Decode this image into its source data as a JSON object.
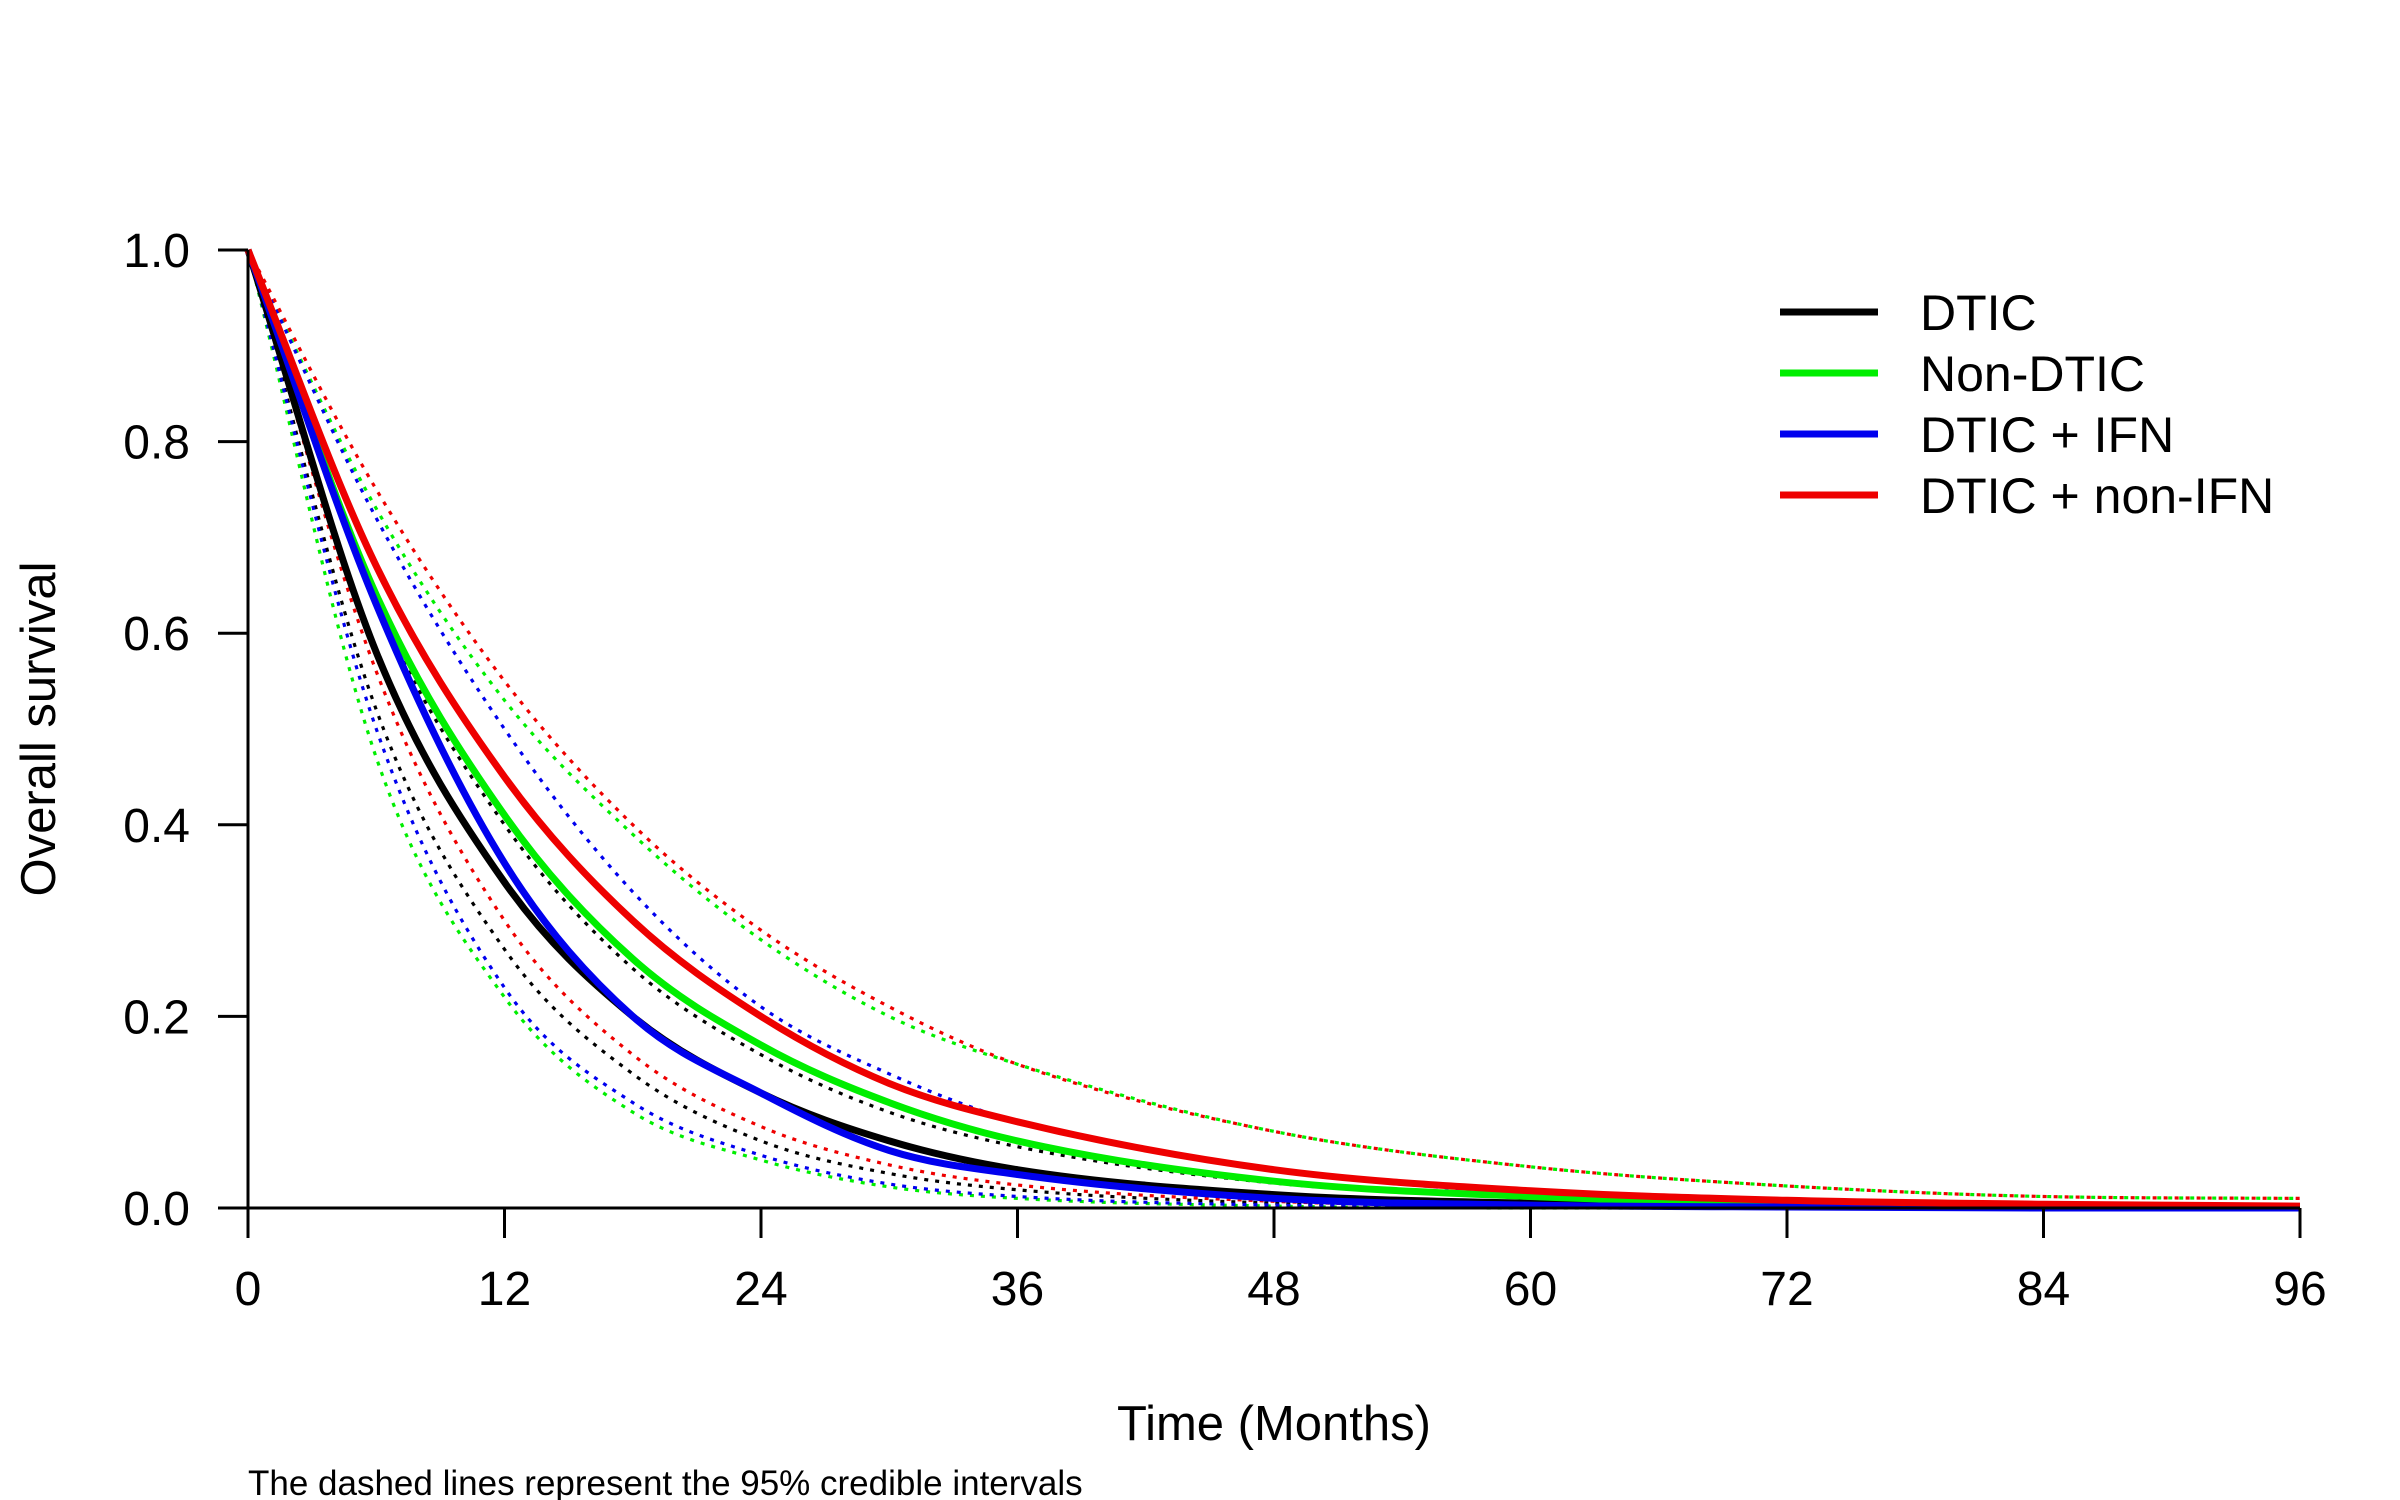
{
  "chart_data": {
    "type": "line",
    "title": "",
    "xlabel": "Time (Months)",
    "ylabel": "Overall survival",
    "xlim": [
      0,
      96
    ],
    "ylim": [
      0,
      1
    ],
    "xticks": [
      "0",
      "12",
      "24",
      "36",
      "48",
      "60",
      "72",
      "84",
      "96"
    ],
    "yticks": [
      "0.0",
      "0.2",
      "0.4",
      "0.6",
      "0.8",
      "1.0"
    ],
    "grid": false,
    "legend_position": "top-right",
    "note": "The dashed lines represent the 95% credible intervals",
    "series": [
      {
        "name": "DTIC",
        "color": "#000000",
        "x": [
          0,
          6,
          12,
          18,
          24,
          30,
          36,
          48,
          60,
          72,
          84,
          96
        ],
        "y": [
          1.0,
          0.58,
          0.34,
          0.2,
          0.12,
          0.07,
          0.04,
          0.014,
          0.005,
          0.002,
          0.001,
          0.0
        ],
        "ci_lower": [
          1.0,
          0.52,
          0.27,
          0.14,
          0.07,
          0.036,
          0.019,
          0.005,
          0.001,
          0.0,
          0.0,
          0.0
        ],
        "ci_upper": [
          1.0,
          0.63,
          0.4,
          0.25,
          0.16,
          0.1,
          0.064,
          0.026,
          0.011,
          0.004,
          0.002,
          0.001
        ]
      },
      {
        "name": "Non-DTIC",
        "color": "#00ee00",
        "x": [
          0,
          6,
          12,
          18,
          24,
          30,
          36,
          48,
          60,
          72,
          84,
          96
        ],
        "y": [
          1.0,
          0.64,
          0.41,
          0.26,
          0.17,
          0.11,
          0.07,
          0.028,
          0.012,
          0.005,
          0.002,
          0.001
        ],
        "ci_lower": [
          1.0,
          0.47,
          0.22,
          0.1,
          0.05,
          0.022,
          0.01,
          0.002,
          0.0,
          0.0,
          0.0,
          0.0
        ],
        "ci_upper": [
          1.0,
          0.73,
          0.53,
          0.39,
          0.28,
          0.2,
          0.15,
          0.08,
          0.043,
          0.023,
          0.012,
          0.01
        ]
      },
      {
        "name": "DTIC + IFN",
        "color": "#0000ee",
        "x": [
          0,
          6,
          12,
          18,
          24,
          30,
          36,
          48,
          60,
          72,
          84,
          96
        ],
        "y": [
          1.0,
          0.63,
          0.36,
          0.2,
          0.12,
          0.06,
          0.035,
          0.01,
          0.003,
          0.001,
          0.0,
          0.0
        ],
        "ci_lower": [
          1.0,
          0.5,
          0.23,
          0.11,
          0.055,
          0.025,
          0.012,
          0.003,
          0.001,
          0.0,
          0.0,
          0.0
        ],
        "ci_upper": [
          1.0,
          0.72,
          0.5,
          0.33,
          0.21,
          0.14,
          0.09,
          0.04,
          0.015,
          0.006,
          0.002,
          0.001
        ]
      },
      {
        "name": "DTIC + non-IFN",
        "color": "#ee0000",
        "x": [
          0,
          6,
          12,
          18,
          24,
          30,
          36,
          48,
          60,
          72,
          84,
          96
        ],
        "y": [
          1.0,
          0.67,
          0.45,
          0.3,
          0.2,
          0.13,
          0.09,
          0.04,
          0.018,
          0.008,
          0.004,
          0.002
        ],
        "ci_lower": [
          1.0,
          0.56,
          0.3,
          0.16,
          0.085,
          0.045,
          0.024,
          0.007,
          0.002,
          0.001,
          0.0,
          0.0
        ],
        "ci_upper": [
          1.0,
          0.75,
          0.55,
          0.4,
          0.29,
          0.21,
          0.15,
          0.08,
          0.043,
          0.023,
          0.012,
          0.01
        ]
      }
    ]
  }
}
